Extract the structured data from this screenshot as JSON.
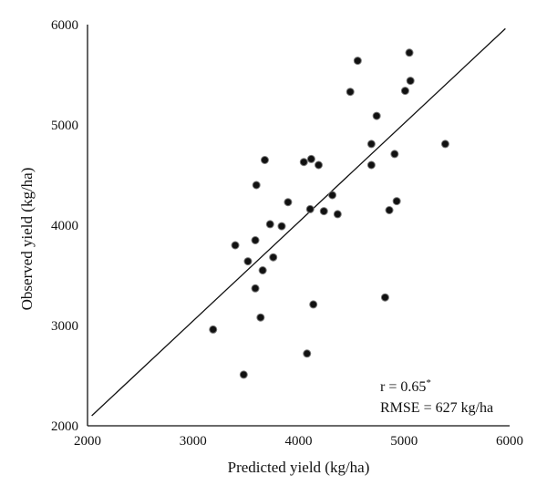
{
  "chart_data": {
    "type": "scatter",
    "title": "",
    "xlabel": "Predicted yield (kg/ha)",
    "ylabel": "Observed yield (kg/ha)",
    "xlim": [
      2000,
      6000
    ],
    "ylim": [
      2000,
      6000
    ],
    "xticks": [
      "2000",
      "3000",
      "4000",
      "5000",
      "6000"
    ],
    "yticks": [
      "2000",
      "3000",
      "4000",
      "5000",
      "6000"
    ],
    "grid": false,
    "regression_line": {
      "x": [
        2040,
        5960
      ],
      "y": [
        2100,
        5960
      ]
    },
    "annotations": {
      "r_label": "r = 0.65",
      "r_superscript": "*",
      "rmse_label": "RMSE = 627 kg/ha"
    },
    "points": [
      {
        "x": 3190,
        "y": 2960
      },
      {
        "x": 3400,
        "y": 3800
      },
      {
        "x": 3480,
        "y": 2510
      },
      {
        "x": 3520,
        "y": 3640
      },
      {
        "x": 3590,
        "y": 3850
      },
      {
        "x": 3600,
        "y": 4400
      },
      {
        "x": 3590,
        "y": 3370
      },
      {
        "x": 3640,
        "y": 3080
      },
      {
        "x": 3660,
        "y": 3550
      },
      {
        "x": 3680,
        "y": 4650
      },
      {
        "x": 3730,
        "y": 4010
      },
      {
        "x": 3760,
        "y": 3680
      },
      {
        "x": 3840,
        "y": 3990
      },
      {
        "x": 3900,
        "y": 4230
      },
      {
        "x": 4050,
        "y": 4630
      },
      {
        "x": 4080,
        "y": 2720
      },
      {
        "x": 4110,
        "y": 4160
      },
      {
        "x": 4120,
        "y": 4660
      },
      {
        "x": 4140,
        "y": 3210
      },
      {
        "x": 4190,
        "y": 4600
      },
      {
        "x": 4240,
        "y": 4140
      },
      {
        "x": 4320,
        "y": 4300
      },
      {
        "x": 4370,
        "y": 4110
      },
      {
        "x": 4490,
        "y": 5330
      },
      {
        "x": 4560,
        "y": 5640
      },
      {
        "x": 4690,
        "y": 4810
      },
      {
        "x": 4690,
        "y": 4600
      },
      {
        "x": 4740,
        "y": 5090
      },
      {
        "x": 4820,
        "y": 3280
      },
      {
        "x": 4860,
        "y": 4150
      },
      {
        "x": 4910,
        "y": 4710
      },
      {
        "x": 4930,
        "y": 4240
      },
      {
        "x": 5010,
        "y": 5340
      },
      {
        "x": 5050,
        "y": 5720
      },
      {
        "x": 5060,
        "y": 5440
      },
      {
        "x": 5390,
        "y": 4810
      }
    ]
  }
}
